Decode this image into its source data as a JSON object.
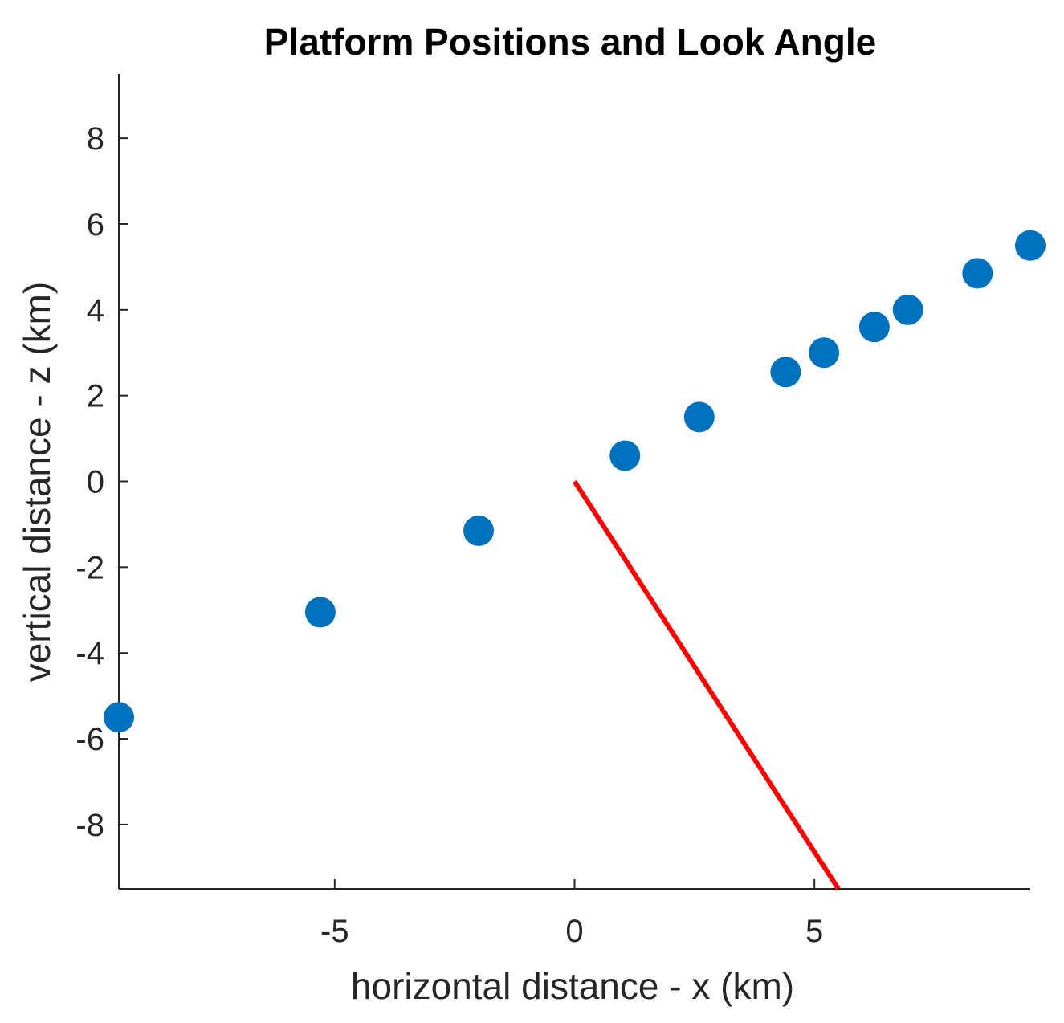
{
  "chart_data": {
    "type": "scatter",
    "title": "Platform Positions and Look Angle",
    "xlabel": "horizontal distance - x (km)",
    "ylabel": "vertical distance - z (km)",
    "xlim": [
      -9.5,
      9.5
    ],
    "ylim": [
      -9.5,
      9.5
    ],
    "xticks": [
      -5,
      0,
      5
    ],
    "yticks": [
      -8,
      -6,
      -4,
      -2,
      0,
      2,
      4,
      6,
      8
    ],
    "grid": false,
    "legend": "none",
    "series": [
      {
        "type": "scatter",
        "color": "#0072BD",
        "points": [
          {
            "x": -9.5,
            "y": -5.5
          },
          {
            "x": -5.3,
            "y": -3.05
          },
          {
            "x": -2.0,
            "y": -1.15
          },
          {
            "x": 1.05,
            "y": 0.6
          },
          {
            "x": 2.6,
            "y": 1.5
          },
          {
            "x": 4.4,
            "y": 2.55
          },
          {
            "x": 5.2,
            "y": 3.0
          },
          {
            "x": 6.25,
            "y": 3.6
          },
          {
            "x": 6.95,
            "y": 4.0
          },
          {
            "x": 8.4,
            "y": 4.85
          },
          {
            "x": 9.5,
            "y": 5.5
          }
        ]
      },
      {
        "type": "line",
        "color": "#FF0000",
        "points": [
          {
            "x": 0,
            "y": 0
          },
          {
            "x": 5.5,
            "y": -9.5
          }
        ]
      }
    ]
  }
}
